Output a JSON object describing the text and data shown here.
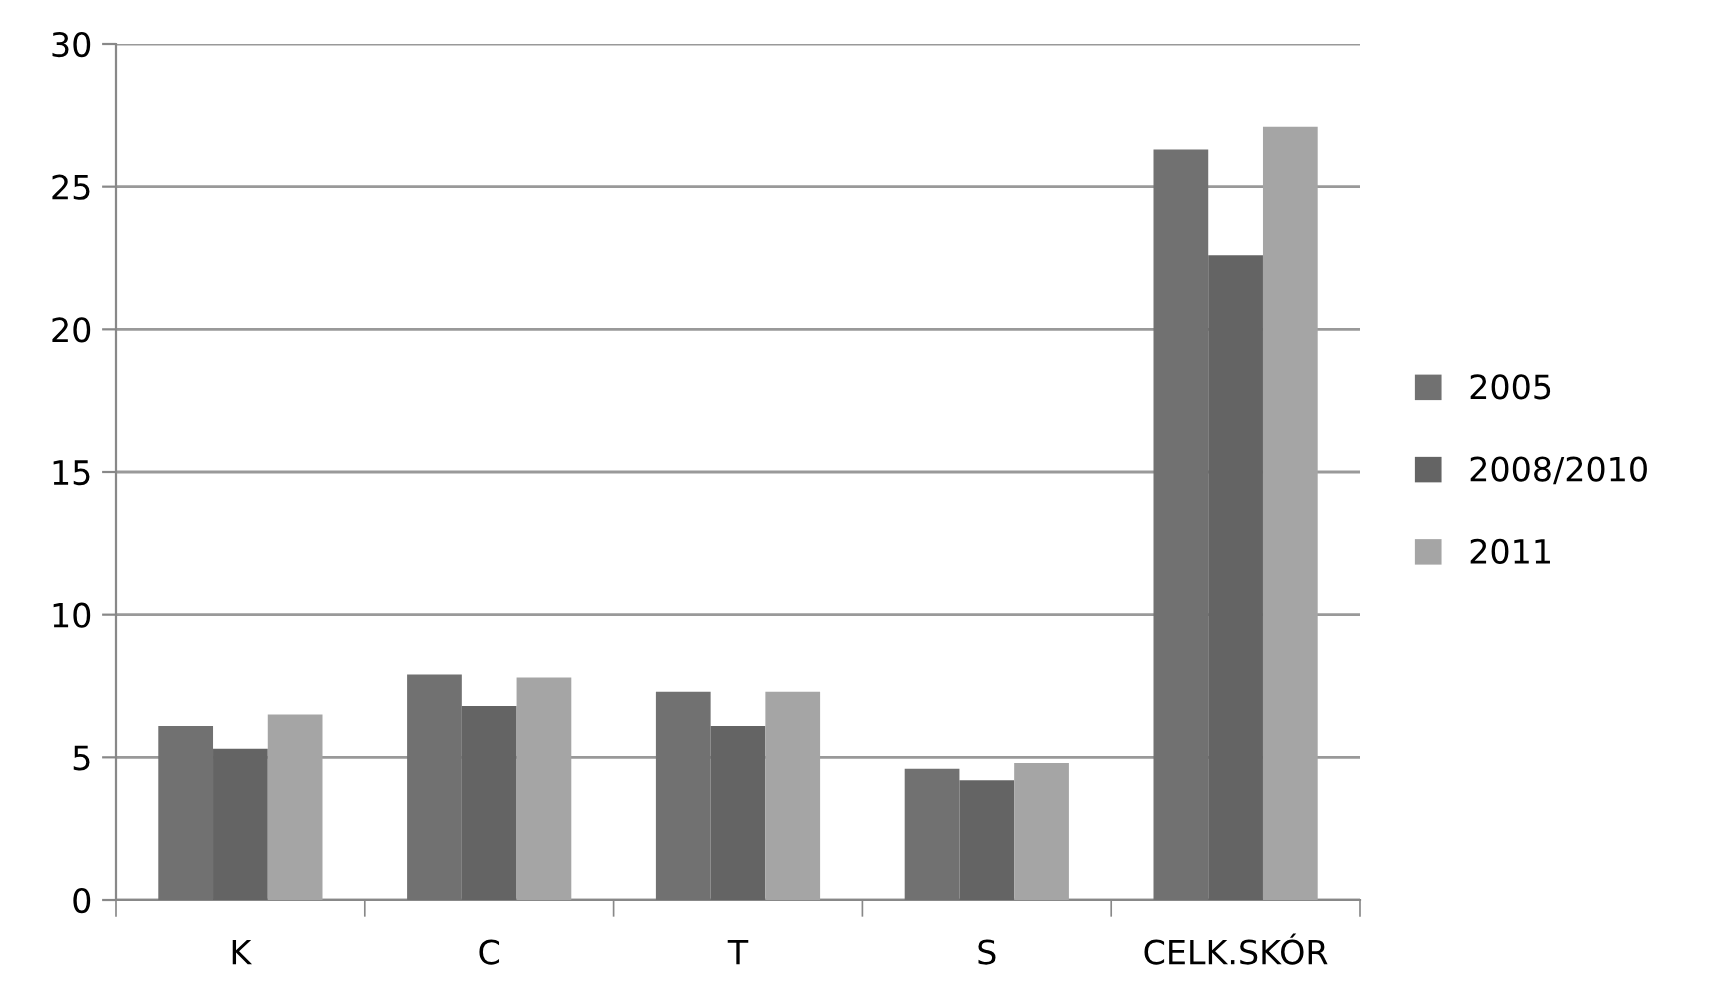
{
  "chart_data": {
    "type": "bar",
    "categories": [
      "K",
      "C",
      "T",
      "S",
      "CELK.SKÓR"
    ],
    "series": [
      {
        "name": "2005",
        "color": "#717171",
        "values": [
          6.1,
          7.9,
          7.3,
          4.6,
          26.3
        ]
      },
      {
        "name": "2008/2010",
        "color": "#646464",
        "values": [
          5.3,
          6.8,
          6.1,
          4.2,
          22.6
        ]
      },
      {
        "name": "2011",
        "color": "#a5a5a5",
        "values": [
          6.5,
          7.8,
          7.3,
          4.8,
          27.1
        ]
      }
    ],
    "ylim": [
      0,
      30
    ],
    "yticks": [
      0,
      5,
      10,
      15,
      20,
      25,
      30
    ],
    "grid": "y",
    "legend": "right"
  }
}
